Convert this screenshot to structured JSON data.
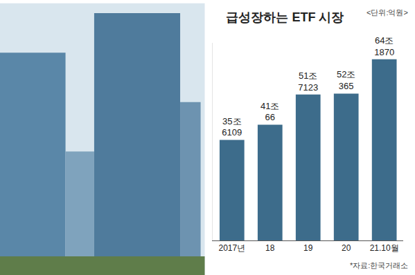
{
  "chart_data": {
    "type": "bar",
    "title": "급성장하는 ETF 시장",
    "subtitle": "<단위:억원>",
    "annotations": [
      "*자료:한국거래소"
    ],
    "categories": [
      "2017년",
      "18",
      "19",
      "20",
      "21.10월"
    ],
    "values": [
      356109,
      410066,
      517123,
      520365,
      641870
    ],
    "value_labels": [
      "35조 6109",
      "41조 66",
      "51조 7123",
      "52조 365",
      "64조 1870"
    ],
    "color": "#3d6c8b",
    "ylim": [
      0,
      700000
    ],
    "yticks": [],
    "grid": false,
    "data_labels": true,
    "tick_labels": "x"
  }
}
